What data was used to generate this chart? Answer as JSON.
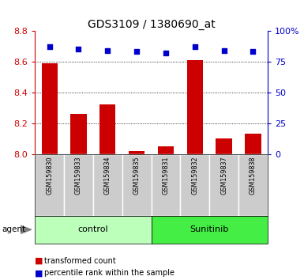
{
  "title": "GDS3109 / 1380690_at",
  "samples": [
    "GSM159830",
    "GSM159833",
    "GSM159834",
    "GSM159835",
    "GSM159831",
    "GSM159832",
    "GSM159837",
    "GSM159838"
  ],
  "red_values": [
    8.59,
    8.26,
    8.32,
    8.02,
    8.05,
    8.61,
    8.1,
    8.13
  ],
  "blue_values": [
    87,
    85,
    84,
    83,
    82,
    87,
    84,
    83
  ],
  "groups": [
    {
      "label": "control",
      "start": 0,
      "end": 4,
      "color": "#bbffbb"
    },
    {
      "label": "Sunitinib",
      "start": 4,
      "end": 8,
      "color": "#44ee44"
    }
  ],
  "ylim_left": [
    8.0,
    8.8
  ],
  "ylim_right": [
    0,
    100
  ],
  "yticks_left": [
    8.0,
    8.2,
    8.4,
    8.6,
    8.8
  ],
  "yticks_right": [
    0,
    25,
    50,
    75,
    100
  ],
  "ytick_labels_right": [
    "0",
    "25",
    "50",
    "75",
    "100%"
  ],
  "left_axis_color": "#cc0000",
  "right_axis_color": "#0000cc",
  "bar_color": "#cc0000",
  "dot_color": "#0000cc",
  "sample_bg_color": "#cccccc",
  "agent_label": "agent",
  "legend_items": [
    {
      "color": "#cc0000",
      "label": "transformed count"
    },
    {
      "color": "#0000cc",
      "label": "percentile rank within the sample"
    }
  ]
}
